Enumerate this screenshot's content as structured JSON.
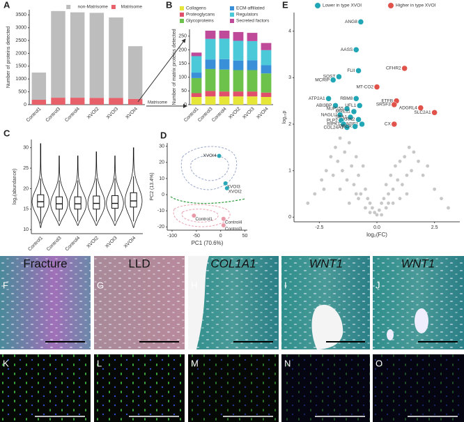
{
  "chart_data": [
    {
      "type": "stacked_bar",
      "panel": "A",
      "categories": [
        "Control1",
        "Control3",
        "Control4",
        "XVOI2",
        "XVOI3",
        "XVOI4"
      ],
      "series": [
        {
          "name": "Matrisome",
          "color": "#e8606a",
          "values": [
            190,
            270,
            270,
            265,
            260,
            225
          ]
        },
        {
          "name": "non-Matrisome",
          "color": "#bdbdbd",
          "values": [
            1060,
            3380,
            3330,
            3315,
            3140,
            2055
          ]
        }
      ],
      "ylabel": "Number of proteins detected",
      "ylim": [
        0,
        3700
      ],
      "yticks": [
        0,
        500,
        1000,
        1500,
        2000,
        2500,
        3000,
        3500
      ],
      "annotation": "Matrisome"
    },
    {
      "type": "stacked_bar",
      "panel": "B",
      "categories": [
        "Control1",
        "Control3",
        "Control4",
        "XVOI2",
        "XVOI3",
        "XVOI4"
      ],
      "series": [
        {
          "name": "Collagens",
          "color": "#e6e639",
          "values": [
            28,
            30,
            30,
            30,
            30,
            28
          ]
        },
        {
          "name": "Proteoglycans",
          "color": "#e0506a",
          "values": [
            14,
            20,
            18,
            18,
            18,
            16
          ]
        },
        {
          "name": "Glycoproteins",
          "color": "#6cc24a",
          "values": [
            55,
            80,
            80,
            78,
            78,
            70
          ]
        },
        {
          "name": "ECM-affiliated",
          "color": "#3a8fd9",
          "values": [
            20,
            35,
            38,
            35,
            36,
            30
          ]
        },
        {
          "name": "Regulators",
          "color": "#4cc9d9",
          "values": [
            60,
            75,
            75,
            72,
            70,
            55
          ]
        },
        {
          "name": "Secreted factors",
          "color": "#c04a9a",
          "values": [
            13,
            30,
            29,
            32,
            30,
            26
          ]
        }
      ],
      "ylabel": "Number of matrix proteins detected",
      "ylim": [
        0,
        275
      ],
      "yticks": [
        0,
        50,
        100,
        150,
        200,
        250
      ]
    },
    {
      "type": "violin",
      "panel": "C",
      "categories": [
        "Control1",
        "Control3",
        "Control4",
        "XVOI2",
        "XVOI3",
        "XVOI4"
      ],
      "ylabel": "log₂(abundance)",
      "ylim": [
        9,
        32
      ],
      "yticks": [
        10,
        15,
        20,
        25,
        30
      ],
      "min": [
        10.5,
        11,
        11,
        11,
        11,
        10.5
      ],
      "whisker_low": [
        11.5,
        12,
        12,
        12,
        12,
        12
      ],
      "q1": [
        15.5,
        15,
        15,
        15,
        15.2,
        15.5
      ],
      "median": [
        16.8,
        16.3,
        16.3,
        16.4,
        16.4,
        17
      ],
      "q3": [
        18.5,
        18,
        18,
        18.2,
        18.3,
        19
      ],
      "whisker_high": [
        22.5,
        22,
        22,
        22.5,
        22.5,
        23
      ],
      "max": [
        31,
        28,
        28,
        29,
        28,
        30
      ]
    },
    {
      "type": "scatter",
      "panel": "D",
      "x": [
        -3,
        10,
        13,
        -55,
        6,
        6
      ],
      "y": [
        24,
        7,
        4,
        -13,
        -15,
        -19
      ],
      "labels": [
        "XVOI4",
        "XVOI3",
        "XVOI2",
        "Control1",
        "Control4",
        "Control3"
      ],
      "colors": [
        "#2aa8b8",
        "#2aa8b8",
        "#2aa8b8",
        "#e89aa8",
        "#e89aa8",
        "#e89aa8"
      ],
      "xlabel": "PC1 (70.6%)",
      "ylabel": "PC2 (13.4%)",
      "xlim": [
        -110,
        55
      ],
      "xticks": [
        -100,
        -50,
        0,
        50
      ],
      "ylim": [
        -22,
        32
      ],
      "yticks": [
        -20,
        -10,
        0,
        10,
        20,
        30
      ]
    },
    {
      "type": "scatter",
      "panel": "E",
      "xlabel": "log₂(FC)",
      "ylabel": "log₁₀p",
      "xlim": [
        -3.6,
        3.6
      ],
      "xticks": [
        -2.5,
        {
          "value": 0,
          "label": "0.0"
        },
        2.5
      ],
      "ylim": [
        -0.1,
        4.4
      ],
      "yticks": [
        0,
        1,
        2,
        3,
        4
      ],
      "series": [
        {
          "color": "#bdbdbd",
          "x": [
            -3.0,
            -2.7,
            -2.4,
            -2.2,
            -2.0,
            -1.9,
            -1.8,
            -1.7,
            -1.6,
            -1.5,
            -1.4,
            -1.3,
            -1.2,
            -1.1,
            -1.0,
            -0.9,
            -0.8,
            -0.7,
            -0.6,
            -0.5,
            -0.4,
            -0.3,
            -0.2,
            -0.1,
            0.0,
            0.1,
            0.2,
            0.3,
            0.4,
            0.5,
            0.6,
            0.7,
            0.8,
            0.9,
            1.0,
            1.1,
            1.2,
            1.3,
            1.4,
            1.5,
            1.6,
            1.8,
            2.0,
            2.2,
            2.5,
            2.8,
            3.1,
            -1.2,
            -0.8,
            -0.5,
            -0.3,
            0.2,
            0.4,
            0.7,
            1.0,
            -1.6,
            -0.9,
            0.5,
            1.3,
            -2.3
          ],
          "y": [
            0.3,
            0.5,
            0.8,
            1.0,
            1.3,
            0.9,
            1.5,
            1.2,
            1.7,
            1.0,
            1.4,
            0.8,
            1.6,
            1.1,
            0.7,
            1.3,
            0.9,
            0.5,
            1.1,
            0.6,
            0.4,
            0.3,
            0.2,
            0.1,
            0.05,
            0.15,
            0.3,
            0.4,
            0.7,
            0.5,
            0.9,
            0.6,
            1.1,
            0.8,
            1.2,
            0.7,
            1.3,
            0.9,
            1.5,
            1.0,
            1.4,
            1.2,
            0.9,
            1.1,
            0.6,
            0.4,
            0.2,
            0.3,
            0.4,
            0.2,
            0.1,
            0.05,
            0.2,
            0.3,
            0.4,
            0.6,
            0.5,
            0.3,
            0.5,
            0.6
          ]
        },
        {
          "name": "Lower in type XVOI",
          "color": "#21a6b5",
          "labels": [
            "ANG8",
            "AASS",
            "FLII",
            "SOST",
            "MCRIP",
            "ATP2A1",
            "RBM8",
            "ABI3BP",
            "NUP155",
            "UFL1",
            "MRE11",
            "NAGLU",
            "SBA1",
            "KRN2",
            "PLP2",
            "RIPK1",
            "NSR1",
            "COL24A1",
            "TBCA"
          ],
          "x": [
            -0.7,
            -0.9,
            -0.8,
            -1.65,
            -1.9,
            -2.1,
            -0.9,
            -1.8,
            -1.3,
            -0.75,
            -1.0,
            -1.6,
            -1.15,
            -0.8,
            -1.55,
            -1.45,
            -0.65,
            -1.3,
            -0.95
          ],
          "y": [
            4.2,
            3.6,
            3.15,
            3.02,
            2.95,
            2.55,
            2.55,
            2.4,
            2.33,
            2.4,
            2.27,
            2.2,
            2.15,
            2.1,
            2.08,
            2.0,
            2.0,
            1.93,
            1.95
          ]
        },
        {
          "name": "Higher in type XVOI",
          "color": "#e0524a",
          "labels": [
            "CFHR2",
            "MT-CO2",
            "ETFB",
            "SRSF3",
            "ADGRL4",
            "SLC2A1",
            "CX"
          ],
          "x": [
            1.2,
            0.0,
            0.85,
            0.75,
            1.9,
            2.5,
            0.75
          ],
          "y": [
            3.2,
            2.8,
            2.5,
            2.42,
            2.35,
            2.25,
            2.0
          ]
        }
      ]
    }
  ],
  "image_panels": [
    {
      "letter": "F",
      "title": "Fracture"
    },
    {
      "letter": "G",
      "title": "LLD"
    },
    {
      "letter": "H",
      "title": "COL1A1"
    },
    {
      "letter": "I",
      "title": "WNT1"
    },
    {
      "letter": "J",
      "title": "WNT1"
    },
    {
      "letter": "K"
    },
    {
      "letter": "L"
    },
    {
      "letter": "M"
    },
    {
      "letter": "N"
    },
    {
      "letter": "O"
    }
  ]
}
